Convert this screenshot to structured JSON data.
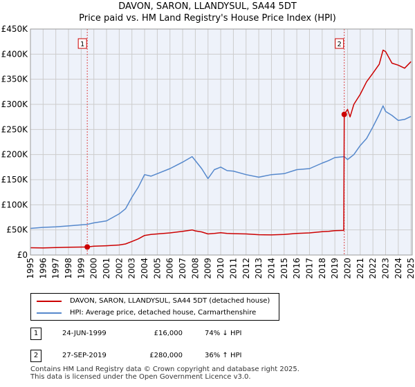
{
  "chart_data": {
    "type": "line",
    "title": "DAVON, SARON, LLANDYSUL, SA44 5DT",
    "subtitle": "Price paid vs. HM Land Registry's House Price Index (HPI)",
    "xlabel": "",
    "ylabel": "",
    "xlim": [
      1995.0,
      2025.1
    ],
    "ylim": [
      0,
      450000
    ],
    "x_ticks": [
      "1995",
      "1996",
      "1997",
      "1998",
      "1999",
      "2000",
      "2001",
      "2002",
      "2003",
      "2004",
      "2005",
      "2006",
      "2007",
      "2008",
      "2009",
      "2010",
      "2011",
      "2012",
      "2013",
      "2014",
      "2015",
      "2016",
      "2017",
      "2018",
      "2019",
      "2020",
      "2021",
      "2022",
      "2023",
      "2024",
      "2025"
    ],
    "y_ticks": [
      "£0",
      "£50K",
      "£100K",
      "£150K",
      "£200K",
      "£250K",
      "£300K",
      "£350K",
      "£400K",
      "£450K"
    ],
    "grid": true,
    "series": [
      {
        "name": "DAVON, SARON, LLANDYSUL, SA44 5DT (detached house)",
        "color": "#cc0000",
        "x": [
          1995.0,
          1996.0,
          1997.0,
          1998.0,
          1999.0,
          1999.48,
          2000.0,
          2001.0,
          2002.0,
          2002.5,
          2003.0,
          2003.5,
          2004.0,
          2004.5,
          2005.0,
          2006.0,
          2007.0,
          2007.75,
          2008.0,
          2008.5,
          2009.0,
          2009.5,
          2010.0,
          2010.5,
          2011.0,
          2012.0,
          2013.0,
          2014.0,
          2015.0,
          2016.0,
          2017.0,
          2018.0,
          2018.5,
          2019.0,
          2019.7,
          2019.74,
          2020.0,
          2020.2,
          2020.5,
          2021.0,
          2021.5,
          2022.0,
          2022.5,
          2022.8,
          2023.0,
          2023.5,
          2024.0,
          2024.5,
          2025.0
        ],
        "y": [
          14500,
          14000,
          14800,
          15500,
          15800,
          16000,
          17500,
          18500,
          20000,
          22000,
          27000,
          32000,
          39000,
          41000,
          42000,
          44000,
          47000,
          50000,
          48000,
          46000,
          42000,
          43000,
          44500,
          43000,
          42500,
          42000,
          40500,
          40000,
          41000,
          43000,
          44000,
          46500,
          47000,
          48500,
          49000,
          280000,
          290000,
          275000,
          300000,
          320000,
          345000,
          362000,
          380000,
          408000,
          405000,
          382000,
          378000,
          372000,
          385000
        ]
      },
      {
        "name": "HPI: Average price, detached house, Carmarthenshire",
        "color": "#5588cc",
        "x": [
          1995.0,
          1996.0,
          1997.0,
          1998.0,
          1999.0,
          1999.48,
          2000.0,
          2001.0,
          2002.0,
          2002.5,
          2003.0,
          2003.5,
          2004.0,
          2004.5,
          2005.0,
          2006.0,
          2007.0,
          2007.75,
          2008.0,
          2008.5,
          2009.0,
          2009.5,
          2010.0,
          2010.5,
          2011.0,
          2012.0,
          2013.0,
          2014.0,
          2015.0,
          2016.0,
          2017.0,
          2018.0,
          2018.5,
          2019.0,
          2019.74,
          2020.0,
          2020.5,
          2021.0,
          2021.5,
          2022.0,
          2022.5,
          2022.8,
          2023.0,
          2023.5,
          2024.0,
          2024.5,
          2025.0
        ],
        "y": [
          53000,
          55000,
          56000,
          58000,
          60000,
          61000,
          64000,
          68000,
          82000,
          92000,
          115000,
          135000,
          160000,
          157000,
          162000,
          172000,
          185000,
          196000,
          188000,
          172000,
          152000,
          170000,
          175000,
          168000,
          167000,
          160000,
          155000,
          160000,
          162000,
          170000,
          172000,
          183000,
          188000,
          194000,
          196000,
          190000,
          200000,
          218000,
          232000,
          255000,
          280000,
          297000,
          286000,
          278000,
          268000,
          270000,
          276000
        ]
      }
    ],
    "annotations": [
      {
        "label": "1",
        "x": 1999.48,
        "y": 16000
      },
      {
        "label": "2",
        "x": 2019.74,
        "y": 280000
      }
    ],
    "legend_position": "below"
  },
  "legend": {
    "series_1": "DAVON, SARON, LLANDYSUL, SA44 5DT (detached house)",
    "series_2": "HPI: Average price, detached house, Carmarthenshire"
  },
  "transactions": [
    {
      "num": "1",
      "date": "24-JUN-1999",
      "price": "£16,000",
      "hpi": "74% ↓ HPI"
    },
    {
      "num": "2",
      "date": "27-SEP-2019",
      "price": "£280,000",
      "hpi": "36% ↑ HPI"
    }
  ],
  "footer": "Contains HM Land Registry data © Crown copyright and database right 2025.\nThis data is licensed under the Open Government Licence v3.0.",
  "colors": {
    "price_line": "#cc0000",
    "hpi_line": "#5588cc",
    "grid": "#cccccc",
    "plot_bg": "#eef2fa"
  }
}
